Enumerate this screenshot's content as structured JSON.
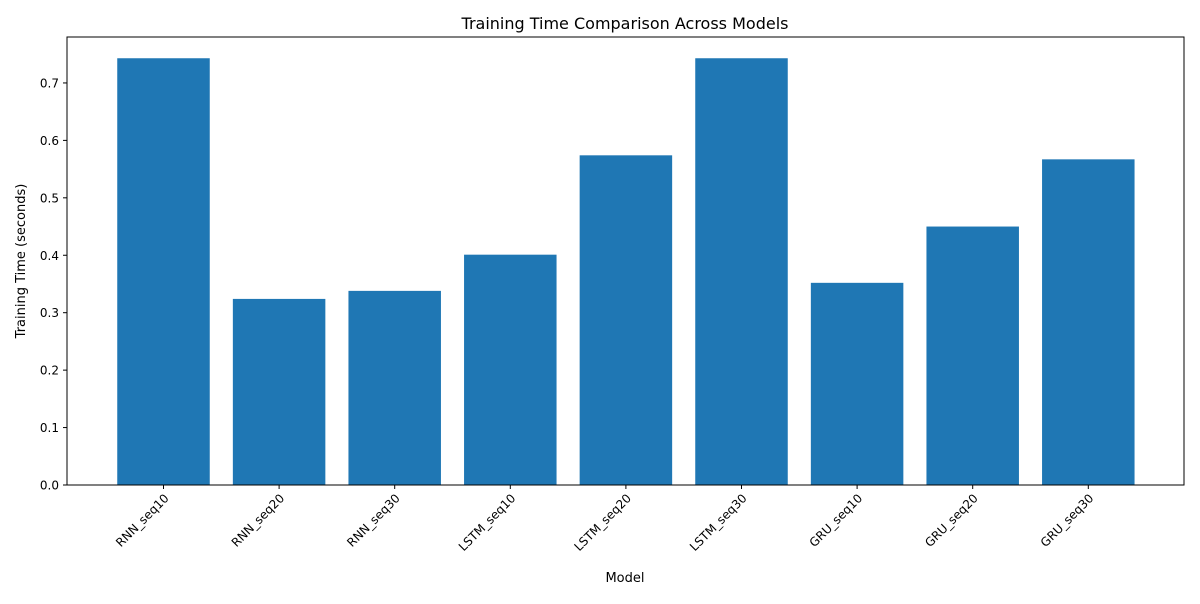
{
  "chart_data": {
    "type": "bar",
    "title": "Training Time Comparison Across Models",
    "xlabel": "Model",
    "ylabel": "Training Time (seconds)",
    "categories": [
      "RNN_seq10",
      "RNN_seq20",
      "RNN_seq30",
      "LSTM_seq10",
      "LSTM_seq20",
      "LSTM_seq30",
      "GRU_seq10",
      "GRU_seq20",
      "GRU_seq30"
    ],
    "values": [
      0.743,
      0.324,
      0.338,
      0.401,
      0.574,
      0.743,
      0.352,
      0.45,
      0.567
    ],
    "ylim": [
      0,
      0.78
    ],
    "yticks": [
      0.0,
      0.1,
      0.2,
      0.3,
      0.4,
      0.5,
      0.6,
      0.7
    ],
    "ytick_labels": [
      "0.0",
      "0.1",
      "0.2",
      "0.3",
      "0.4",
      "0.5",
      "0.6",
      "0.7"
    ],
    "bar_color": "#1f77b4",
    "grid": false,
    "legend": "none",
    "xtick_rotation_deg": 45
  }
}
